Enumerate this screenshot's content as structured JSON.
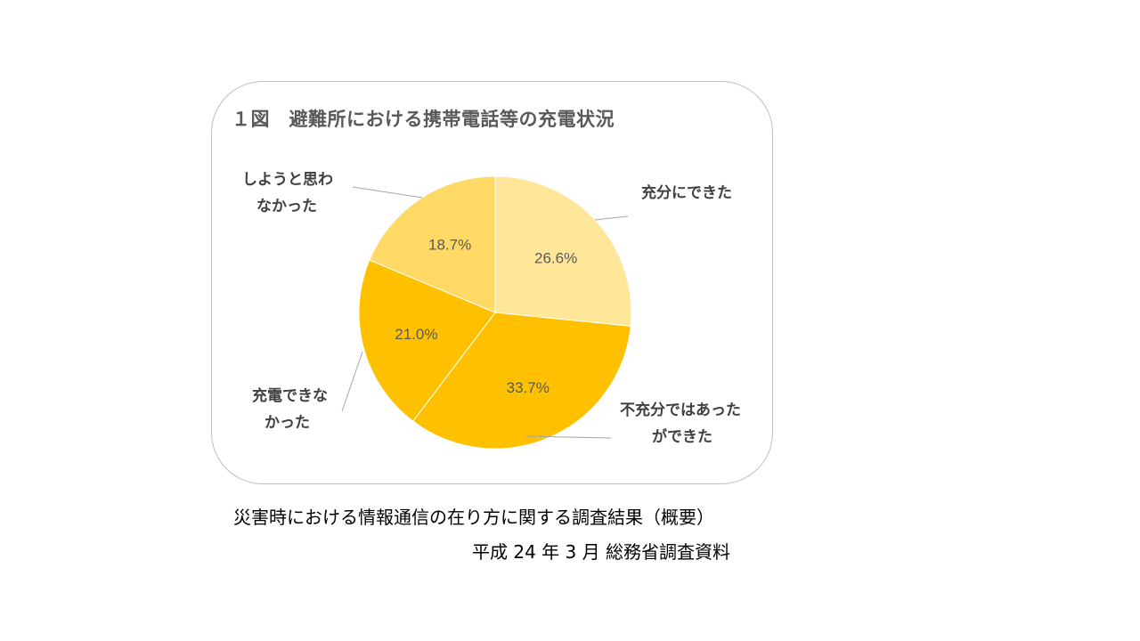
{
  "chart_data": {
    "type": "pie",
    "title": "１図　避難所における携帯電話等の充電状況",
    "slices": [
      {
        "label_lines": [
          "充分にできた"
        ],
        "value": 26.6,
        "value_label": "26.6%",
        "color": "#FFE699"
      },
      {
        "label_lines": [
          "不充分ではあった",
          "ができた"
        ],
        "value": 33.7,
        "value_label": "33.7%",
        "color": "#FFC000"
      },
      {
        "label_lines": [
          "充電できな",
          "かった"
        ],
        "value": 21.0,
        "value_label": "21.0%",
        "color": "#FFC000"
      },
      {
        "label_lines": [
          "しようと思わ",
          "なかった"
        ],
        "value": 18.7,
        "value_label": "18.7%",
        "color": "#FFD966"
      }
    ],
    "start": "12 o'clock, clockwise"
  },
  "source": {
    "line1": "災害時における情報通信の在り方に関する調査結果（概要）",
    "line2": "平成 24 年 3 月 総務省調査資料"
  }
}
